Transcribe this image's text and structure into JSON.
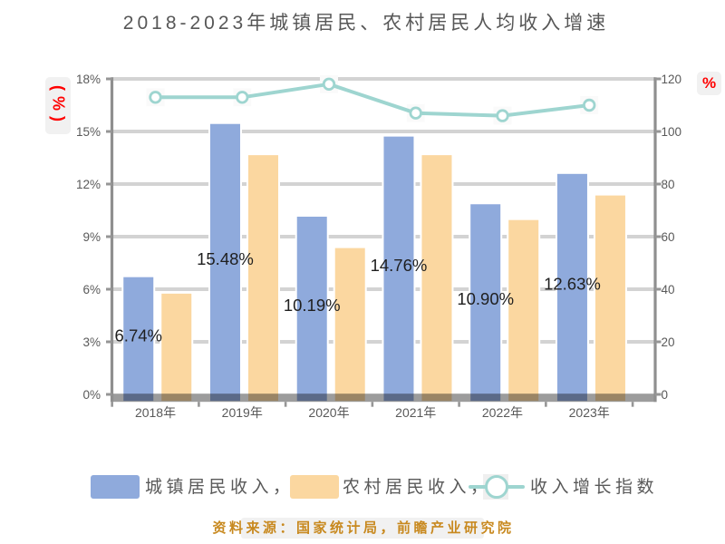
{
  "chart_data": {
    "type": "bar+line",
    "title": "2018-2023年城镇居民、农村居民人均收入增速",
    "categories": [
      "2018年",
      "2019年",
      "2020年",
      "2021年",
      "2022年",
      "2023年"
    ],
    "series": [
      {
        "name": "城镇居民收入，",
        "type": "bar",
        "axis": "left",
        "color": "#8FAADC",
        "values": [
          6.74,
          15.48,
          10.19,
          14.76,
          10.9,
          12.63
        ],
        "data_labels": [
          "6.74%",
          "15.48%",
          "10.19%",
          "14.76%",
          "10.90%",
          "12.63%"
        ]
      },
      {
        "name": "农村居民收入，",
        "type": "bar",
        "axis": "left",
        "color": "#FBD7A0",
        "values": [
          5.8,
          13.7,
          8.4,
          13.7,
          10.0,
          11.4
        ]
      },
      {
        "name": "收入增长指数",
        "type": "line",
        "axis": "right",
        "color": "#9ED5D0",
        "marker": "circle",
        "values": [
          113,
          113,
          118,
          107,
          106,
          110
        ]
      }
    ],
    "left_axis": {
      "title": "(%)",
      "title_color": "#ff0000",
      "min": 0,
      "max": 18,
      "step": 3,
      "tick_labels": [
        "18%",
        "15%",
        "12%",
        "9%",
        "6%",
        "3%",
        "0%"
      ]
    },
    "right_axis": {
      "title": "%",
      "title_color": "#ff0000",
      "min": 0,
      "max": 120,
      "step": 20,
      "tick_labels": [
        "120",
        "100",
        "80",
        "60",
        "40",
        "20",
        "0"
      ]
    },
    "grid": true,
    "legend_position": "bottom",
    "label_color": "#1f1f1f",
    "text_color": "#595959"
  },
  "footer": {
    "source_note": "资料来源：国家统计局，前瞻产业研究院"
  }
}
